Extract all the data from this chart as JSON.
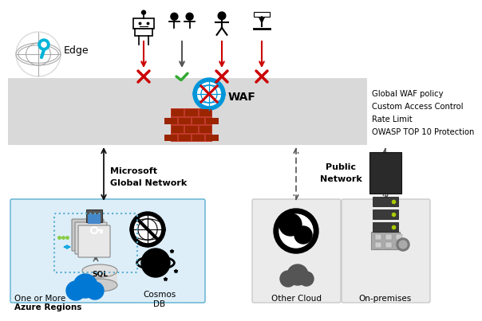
{
  "bg_color": "#ffffff",
  "waf_band_color": "#d9d9d9",
  "azure_box_color": "#ddeef8",
  "azure_box_border": "#5baed1",
  "other_box_color": "#ebebeb",
  "other_box_border": "#c0c0c0",
  "labels": {
    "edge": "Edge",
    "waf": "WAF",
    "global_waf": "Global WAF policy",
    "custom_access": "Custom Access Control",
    "rate_limit": "Rate Limit",
    "owasp": "OWASP TOP 10 Protection",
    "ms_network1": "Microsoft",
    "ms_network2": "Global Network",
    "public_network1": "Public",
    "public_network2": "Network",
    "azure_line1": "One or More",
    "azure_line2": "Azure Regions",
    "other_cloud": "Other Cloud",
    "on_premises": "On-premises",
    "cosmos_db": "Cosmos\nDB",
    "sql": "SQL"
  },
  "cross_color": "#cc0000",
  "check_color": "#33aa33",
  "icon_color": "#111111",
  "arrow_color": "#111111",
  "dashed_arrow_color": "#555555",
  "waf_globe_color": "#0095d9",
  "azure_blue": "#0078d4",
  "led_color": "#aacc00"
}
